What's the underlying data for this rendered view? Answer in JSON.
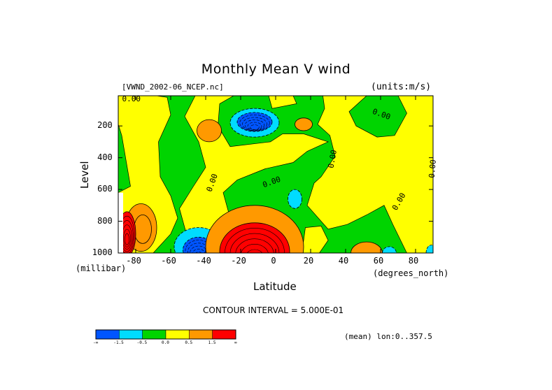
{
  "chart_data": {
    "type": "heatmap",
    "title": "Monthly Mean V wind",
    "dataset_label": "[VWND_2002-06_NCEP.nc]",
    "units_label": "(units:m/s)",
    "xlabel": "Latitude",
    "x_units": "(degrees_north)",
    "ylabel": "Level",
    "y_units": "(millibar)",
    "x_range": [
      -90,
      90
    ],
    "y_range": [
      1000,
      10
    ],
    "x_ticks": [
      -80,
      -60,
      -40,
      -20,
      0,
      20,
      40,
      60,
      80
    ],
    "x_tick_labels": [
      "-80",
      "-60",
      "-40",
      "-20",
      "0",
      "20",
      "40",
      "60",
      "80"
    ],
    "y_ticks": [
      200,
      400,
      600,
      800,
      1000
    ],
    "y_tick_labels": [
      "200",
      "400",
      "600",
      "800",
      "1000"
    ],
    "contour_interval_label": "CONTOUR INTERVAL = 5.000E-01",
    "footer_label": "(mean) lon:0..357.5",
    "contour_labels": [
      "0.00"
    ],
    "colorbar": {
      "colors": [
        "#0055ff",
        "#00dcff",
        "#00d400",
        "#ffff00",
        "#ff9900",
        "#ff0000"
      ],
      "labels": [
        "-∞",
        "-1.5",
        "-0.5",
        "0.0",
        "0.5",
        "1.5",
        "∞"
      ]
    },
    "features": [
      {
        "type": "ellipse",
        "lat": -77,
        "level": 840,
        "rlat": 9,
        "rlev": 150,
        "value": 1.0
      },
      {
        "type": "ellipse",
        "lat": -76,
        "level": 850,
        "rlat": 5,
        "rlev": 90,
        "value": 1.5
      },
      {
        "type": "ellipse",
        "lat": -85,
        "level": 880,
        "rlat": 5,
        "rlev": 140,
        "value": 2.0
      },
      {
        "type": "ellipse",
        "lat": -38,
        "level": 230,
        "rlat": 7,
        "rlev": 70,
        "value": 1.0
      },
      {
        "type": "ellipse",
        "lat": -12,
        "level": 180,
        "rlat": 14,
        "rlev": 90,
        "value": -1.0
      },
      {
        "type": "ellipse",
        "lat": -12,
        "level": 175,
        "rlat": 10,
        "rlev": 60,
        "value": -2.0
      },
      {
        "type": "ellipse",
        "lat": 16,
        "level": 190,
        "rlat": 5,
        "rlev": 40,
        "value": 1.0
      },
      {
        "type": "ellipse",
        "lat": 11,
        "level": 660,
        "rlat": 4,
        "rlev": 60,
        "value": -1.0
      },
      {
        "type": "ellipse",
        "lat": -44,
        "level": 960,
        "rlat": 14,
        "rlev": 120,
        "value": -1.0
      },
      {
        "type": "ellipse",
        "lat": -44,
        "level": 980,
        "rlat": 9,
        "rlev": 80,
        "value": -2.0
      },
      {
        "type": "ellipse",
        "lat": -12,
        "level": 960,
        "rlat": 28,
        "rlev": 260,
        "value": 1.0
      },
      {
        "type": "ellipse",
        "lat": -12,
        "level": 990,
        "rlat": 20,
        "rlev": 180,
        "value": 2.0
      },
      {
        "type": "ellipse",
        "lat": 52,
        "level": 1000,
        "rlat": 9,
        "rlev": 70,
        "value": 1.0
      },
      {
        "type": "ellipse",
        "lat": 65,
        "level": 1000,
        "rlat": 4,
        "rlev": 40,
        "value": -1.0
      },
      {
        "type": "ellipse",
        "lat": 89,
        "level": 1000,
        "rlat": 3,
        "rlev": 50,
        "value": -1.0
      }
    ]
  }
}
